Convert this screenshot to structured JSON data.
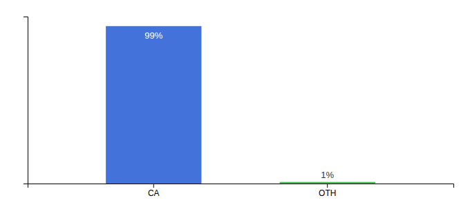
{
  "chart_data": {
    "type": "bar",
    "categories": [
      "CA",
      "OTH"
    ],
    "values": [
      99,
      1
    ],
    "value_labels": [
      "99%",
      "1%"
    ],
    "colors": [
      "#4472db",
      "#2ecc40"
    ],
    "ylim": [
      0,
      105
    ],
    "data_labels": true,
    "tick_labels": "x"
  }
}
